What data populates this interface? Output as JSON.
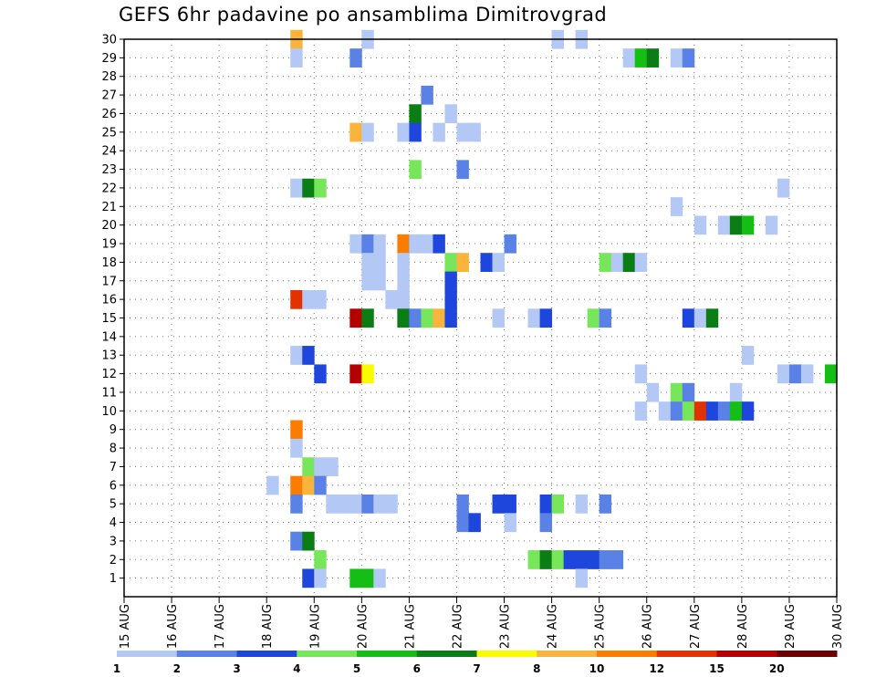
{
  "chart_data": {
    "type": "heatmap",
    "title": "GEFS 6hr padavine po ansamblima Dimitrovgrad",
    "xlabel": "",
    "ylabel": "",
    "x_tick_labels": [
      "15 AUG",
      "16 AUG",
      "17 AUG",
      "18 AUG",
      "19 AUG",
      "20 AUG",
      "21 AUG",
      "22 AUG",
      "23 AUG",
      "24 AUG",
      "25 AUG",
      "26 AUG",
      "27 AUG",
      "28 AUG",
      "29 AUG",
      "30 AUG"
    ],
    "x_range_days": [
      15,
      30
    ],
    "y_tick_labels": [
      "1",
      "2",
      "3",
      "4",
      "5",
      "6",
      "7",
      "8",
      "9",
      "10",
      "11",
      "12",
      "13",
      "14",
      "15",
      "16",
      "17",
      "18",
      "19",
      "20",
      "21",
      "22",
      "23",
      "24",
      "25",
      "26",
      "27",
      "28",
      "29",
      "30"
    ],
    "y_range": [
      0,
      30
    ],
    "grid": true,
    "legend_position": "bottom",
    "color_scale": {
      "boundaries": [
        "1",
        "2",
        "3",
        "4",
        "5",
        "6",
        "7",
        "8",
        "10",
        "12",
        "15",
        "20"
      ],
      "colors": [
        "#b4c8f5",
        "#5a82e6",
        "#1e46dc",
        "#78e65a",
        "#14be14",
        "#0a7d14",
        "#fafa00",
        "#fab43c",
        "#fa7d00",
        "#e13200",
        "#b40000",
        "#6e0000"
      ]
    },
    "cells": [
      {
        "day": 18.5,
        "member": 30,
        "level": 8
      },
      {
        "day": 18.5,
        "member": 29,
        "level": 1
      },
      {
        "day": 20.0,
        "member": 30,
        "level": 1
      },
      {
        "day": 24.0,
        "member": 30,
        "level": 1
      },
      {
        "day": 24.5,
        "member": 30,
        "level": 1
      },
      {
        "day": 19.75,
        "member": 29,
        "level": 2
      },
      {
        "day": 25.5,
        "member": 29,
        "level": 1
      },
      {
        "day": 25.75,
        "member": 29,
        "level": 5
      },
      {
        "day": 26.0,
        "member": 29,
        "level": 6
      },
      {
        "day": 26.5,
        "member": 29,
        "level": 1
      },
      {
        "day": 26.75,
        "member": 29,
        "level": 2
      },
      {
        "day": 21.25,
        "member": 27,
        "level": 2
      },
      {
        "day": 21.0,
        "member": 26,
        "level": 6
      },
      {
        "day": 21.75,
        "member": 26,
        "level": 1
      },
      {
        "day": 19.75,
        "member": 25,
        "level": 8
      },
      {
        "day": 20.0,
        "member": 25,
        "level": 1
      },
      {
        "day": 20.75,
        "member": 25,
        "level": 1
      },
      {
        "day": 21.0,
        "member": 25,
        "level": 3
      },
      {
        "day": 21.5,
        "member": 25,
        "level": 1
      },
      {
        "day": 22.0,
        "member": 25,
        "level": 1
      },
      {
        "day": 22.25,
        "member": 25,
        "level": 1
      },
      {
        "day": 21.0,
        "member": 23,
        "level": 4
      },
      {
        "day": 22.0,
        "member": 23,
        "level": 2
      },
      {
        "day": 18.5,
        "member": 22,
        "level": 1
      },
      {
        "day": 18.75,
        "member": 22,
        "level": 6
      },
      {
        "day": 19.0,
        "member": 22,
        "level": 4
      },
      {
        "day": 28.75,
        "member": 22,
        "level": 1
      },
      {
        "day": 26.5,
        "member": 21,
        "level": 1
      },
      {
        "day": 27.0,
        "member": 20,
        "level": 1
      },
      {
        "day": 27.5,
        "member": 20,
        "level": 1
      },
      {
        "day": 27.75,
        "member": 20,
        "level": 6
      },
      {
        "day": 28.0,
        "member": 20,
        "level": 5
      },
      {
        "day": 28.5,
        "member": 20,
        "level": 1
      },
      {
        "day": 19.75,
        "member": 19,
        "level": 1
      },
      {
        "day": 20.0,
        "member": 19,
        "level": 2
      },
      {
        "day": 20.25,
        "member": 19,
        "level": 1
      },
      {
        "day": 20.75,
        "member": 19,
        "level": 9
      },
      {
        "day": 21.0,
        "member": 19,
        "level": 1
      },
      {
        "day": 21.25,
        "member": 19,
        "level": 1
      },
      {
        "day": 21.5,
        "member": 19,
        "level": 3
      },
      {
        "day": 23.0,
        "member": 19,
        "level": 2
      },
      {
        "day": 20.0,
        "member": 18,
        "level": 1
      },
      {
        "day": 20.25,
        "member": 18,
        "level": 1
      },
      {
        "day": 20.75,
        "member": 18,
        "level": 1
      },
      {
        "day": 21.75,
        "member": 18,
        "level": 4
      },
      {
        "day": 22.0,
        "member": 18,
        "level": 8
      },
      {
        "day": 22.5,
        "member": 18,
        "level": 3
      },
      {
        "day": 22.75,
        "member": 18,
        "level": 1
      },
      {
        "day": 25.0,
        "member": 18,
        "level": 4
      },
      {
        "day": 25.25,
        "member": 18,
        "level": 1
      },
      {
        "day": 25.5,
        "member": 18,
        "level": 6
      },
      {
        "day": 25.75,
        "member": 18,
        "level": 1
      },
      {
        "day": 20.0,
        "member": 17,
        "level": 1
      },
      {
        "day": 20.25,
        "member": 17,
        "level": 1
      },
      {
        "day": 20.75,
        "member": 17,
        "level": 1
      },
      {
        "day": 21.75,
        "member": 17,
        "level": 3
      },
      {
        "day": 18.5,
        "member": 16,
        "level": 10
      },
      {
        "day": 18.75,
        "member": 16,
        "level": 1
      },
      {
        "day": 19.0,
        "member": 16,
        "level": 1
      },
      {
        "day": 20.5,
        "member": 16,
        "level": 1
      },
      {
        "day": 20.75,
        "member": 16,
        "level": 1
      },
      {
        "day": 21.75,
        "member": 16,
        "level": 3
      },
      {
        "day": 19.75,
        "member": 15,
        "level": 11
      },
      {
        "day": 20.0,
        "member": 15,
        "level": 6
      },
      {
        "day": 20.75,
        "member": 15,
        "level": 6
      },
      {
        "day": 21.0,
        "member": 15,
        "level": 2
      },
      {
        "day": 21.25,
        "member": 15,
        "level": 4
      },
      {
        "day": 21.5,
        "member": 15,
        "level": 8
      },
      {
        "day": 21.75,
        "member": 15,
        "level": 3
      },
      {
        "day": 22.75,
        "member": 15,
        "level": 1
      },
      {
        "day": 23.5,
        "member": 15,
        "level": 1
      },
      {
        "day": 23.75,
        "member": 15,
        "level": 3
      },
      {
        "day": 24.75,
        "member": 15,
        "level": 4
      },
      {
        "day": 25.0,
        "member": 15,
        "level": 2
      },
      {
        "day": 26.75,
        "member": 15,
        "level": 3
      },
      {
        "day": 27.0,
        "member": 15,
        "level": 1
      },
      {
        "day": 27.25,
        "member": 15,
        "level": 6
      },
      {
        "day": 18.5,
        "member": 13,
        "level": 1
      },
      {
        "day": 18.75,
        "member": 13,
        "level": 3
      },
      {
        "day": 28.0,
        "member": 13,
        "level": 1
      },
      {
        "day": 19.0,
        "member": 12,
        "level": 3
      },
      {
        "day": 19.75,
        "member": 12,
        "level": 11
      },
      {
        "day": 20.0,
        "member": 12,
        "level": 7
      },
      {
        "day": 25.75,
        "member": 12,
        "level": 1
      },
      {
        "day": 28.75,
        "member": 12,
        "level": 1
      },
      {
        "day": 29.0,
        "member": 12,
        "level": 2
      },
      {
        "day": 29.25,
        "member": 12,
        "level": 1
      },
      {
        "day": 29.75,
        "member": 12,
        "level": 5
      },
      {
        "day": 26.0,
        "member": 11,
        "level": 1
      },
      {
        "day": 26.5,
        "member": 11,
        "level": 4
      },
      {
        "day": 26.75,
        "member": 11,
        "level": 2
      },
      {
        "day": 27.75,
        "member": 11,
        "level": 1
      },
      {
        "day": 25.75,
        "member": 10,
        "level": 1
      },
      {
        "day": 26.25,
        "member": 10,
        "level": 1
      },
      {
        "day": 26.5,
        "member": 10,
        "level": 2
      },
      {
        "day": 26.75,
        "member": 10,
        "level": 4
      },
      {
        "day": 27.0,
        "member": 10,
        "level": 10
      },
      {
        "day": 27.25,
        "member": 10,
        "level": 3
      },
      {
        "day": 27.5,
        "member": 10,
        "level": 2
      },
      {
        "day": 27.75,
        "member": 10,
        "level": 5
      },
      {
        "day": 28.0,
        "member": 10,
        "level": 3
      },
      {
        "day": 18.5,
        "member": 9,
        "level": 9
      },
      {
        "day": 18.5,
        "member": 8,
        "level": 1
      },
      {
        "day": 18.75,
        "member": 7,
        "level": 4
      },
      {
        "day": 19.0,
        "member": 7,
        "level": 1
      },
      {
        "day": 19.25,
        "member": 7,
        "level": 1
      },
      {
        "day": 18.0,
        "member": 6,
        "level": 1
      },
      {
        "day": 18.5,
        "member": 6,
        "level": 9
      },
      {
        "day": 18.75,
        "member": 6,
        "level": 8
      },
      {
        "day": 19.0,
        "member": 6,
        "level": 2
      },
      {
        "day": 18.5,
        "member": 5,
        "level": 2
      },
      {
        "day": 19.25,
        "member": 5,
        "level": 1
      },
      {
        "day": 19.5,
        "member": 5,
        "level": 1
      },
      {
        "day": 19.75,
        "member": 5,
        "level": 1
      },
      {
        "day": 20.0,
        "member": 5,
        "level": 2
      },
      {
        "day": 20.25,
        "member": 5,
        "level": 1
      },
      {
        "day": 20.5,
        "member": 5,
        "level": 1
      },
      {
        "day": 22.0,
        "member": 5,
        "level": 2
      },
      {
        "day": 22.75,
        "member": 5,
        "level": 3
      },
      {
        "day": 23.0,
        "member": 5,
        "level": 3
      },
      {
        "day": 23.75,
        "member": 5,
        "level": 3
      },
      {
        "day": 24.0,
        "member": 5,
        "level": 4
      },
      {
        "day": 24.5,
        "member": 5,
        "level": 1
      },
      {
        "day": 25.0,
        "member": 5,
        "level": 2
      },
      {
        "day": 22.0,
        "member": 4,
        "level": 2
      },
      {
        "day": 22.25,
        "member": 4,
        "level": 3
      },
      {
        "day": 23.0,
        "member": 4,
        "level": 1
      },
      {
        "day": 23.75,
        "member": 4,
        "level": 2
      },
      {
        "day": 18.5,
        "member": 3,
        "level": 2
      },
      {
        "day": 18.75,
        "member": 3,
        "level": 6
      },
      {
        "day": 19.0,
        "member": 2,
        "level": 4
      },
      {
        "day": 23.5,
        "member": 2,
        "level": 4
      },
      {
        "day": 23.75,
        "member": 2,
        "level": 6
      },
      {
        "day": 24.0,
        "member": 2,
        "level": 4
      },
      {
        "day": 24.25,
        "member": 2,
        "level": 3
      },
      {
        "day": 24.5,
        "member": 2,
        "level": 3
      },
      {
        "day": 24.75,
        "member": 2,
        "level": 3
      },
      {
        "day": 25.0,
        "member": 2,
        "level": 2
      },
      {
        "day": 25.25,
        "member": 2,
        "level": 2
      },
      {
        "day": 18.75,
        "member": 1,
        "level": 3
      },
      {
        "day": 19.0,
        "member": 1,
        "level": 1
      },
      {
        "day": 19.75,
        "member": 1,
        "level": 5
      },
      {
        "day": 20.0,
        "member": 1,
        "level": 5
      },
      {
        "day": 20.25,
        "member": 1,
        "level": 1
      },
      {
        "day": 24.5,
        "member": 1,
        "level": 1
      }
    ]
  }
}
